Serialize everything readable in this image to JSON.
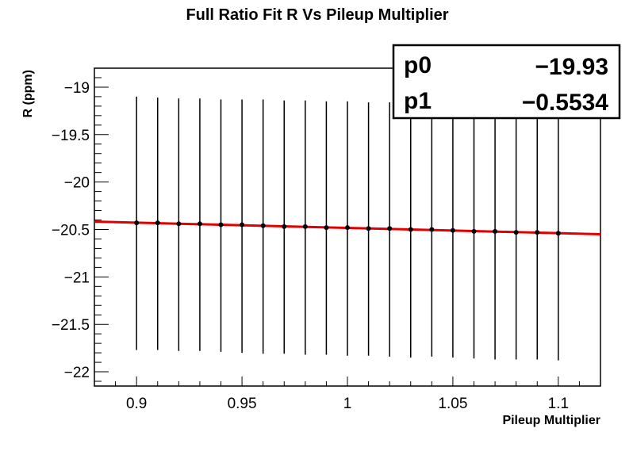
{
  "chart_data": {
    "type": "scatter",
    "title": "Full Ratio Fit R Vs Pileup Multiplier",
    "xlabel": "Pileup Multiplier",
    "ylabel": "R (ppm)",
    "xlim": [
      0.88,
      1.12
    ],
    "ylim": [
      -22.15,
      -18.8
    ],
    "x_ticks": [
      0.9,
      0.95,
      1.0,
      1.05,
      1.1
    ],
    "x_tick_labels": [
      "0.9",
      "0.95",
      "1",
      "1.05",
      "1.1"
    ],
    "y_ticks": [
      -19,
      -19.5,
      -20,
      -20.5,
      -21,
      -21.5,
      -22
    ],
    "y_tick_labels": [
      "−19",
      "−19.5",
      "−20",
      "−20.5",
      "−21",
      "−21.5",
      "−22"
    ],
    "grid": false,
    "series": [
      {
        "x": [
          0.9,
          0.91,
          0.92,
          0.93,
          0.94,
          0.95,
          0.96,
          0.97,
          0.98,
          0.99,
          1.0,
          1.01,
          1.02,
          1.03,
          1.04,
          1.05,
          1.06,
          1.07,
          1.08,
          1.09,
          1.1
        ],
        "y": [
          -20.43,
          -20.43,
          -20.44,
          -20.44,
          -20.45,
          -20.45,
          -20.46,
          -20.47,
          -20.47,
          -20.48,
          -20.48,
          -20.49,
          -20.49,
          -20.5,
          -20.5,
          -20.51,
          -20.52,
          -20.52,
          -20.53,
          -20.53,
          -20.54
        ],
        "y_err_low": [
          1.34,
          1.34,
          1.34,
          1.34,
          1.34,
          1.35,
          1.35,
          1.34,
          1.35,
          1.34,
          1.35,
          1.34,
          1.35,
          1.35,
          1.34,
          1.34,
          1.34,
          1.35,
          1.34,
          1.34,
          1.34
        ],
        "y_err_high": [
          1.33,
          1.32,
          1.32,
          1.32,
          1.32,
          1.32,
          1.33,
          1.33,
          1.33,
          1.33,
          1.33,
          1.33,
          1.33,
          1.34,
          1.34,
          1.34,
          1.34,
          1.35,
          1.35,
          1.35,
          1.35
        ],
        "marker_color": "#000000",
        "error_bar_color": "#000000"
      }
    ],
    "fit": {
      "function": "linear",
      "color": "#e00000",
      "p0": -19.93,
      "p1": -0.5534
    },
    "stats_box": {
      "location": "top-right",
      "rows": [
        {
          "name": "p0",
          "value": "−19.93"
        },
        {
          "name": "p1",
          "value": "−0.5534"
        }
      ]
    }
  }
}
